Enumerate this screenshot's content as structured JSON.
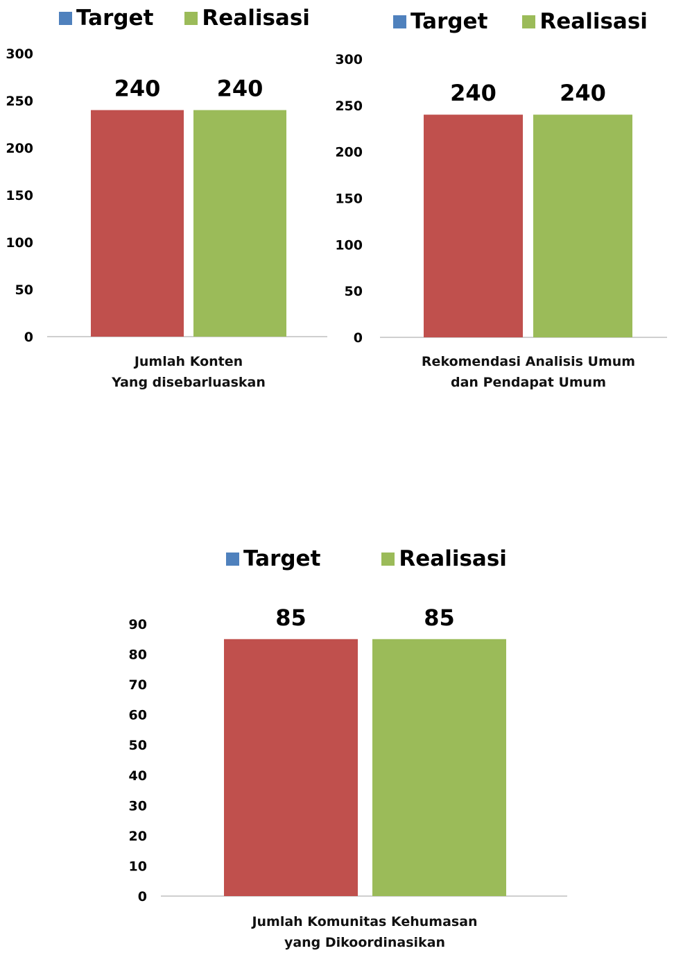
{
  "legend": {
    "target_label": "Target",
    "realisasi_label": "Realisasi",
    "target_color": "#4F81BD",
    "realisasi_color": "#9BBB59"
  },
  "colors": {
    "target_bar": "#C0504D",
    "realisasi_bar": "#9BBB59",
    "axis": "#BFBFBF"
  },
  "chart_data": [
    {
      "type": "bar",
      "categories": [
        "Jumlah Konten Yang disebarluaskan"
      ],
      "category_lines": [
        "Jumlah Konten",
        "Yang disebarluaskan"
      ],
      "series": [
        {
          "name": "Target",
          "values": [
            240
          ]
        },
        {
          "name": "Realisasi",
          "values": [
            240
          ]
        }
      ],
      "data_labels": [
        "240",
        "240"
      ],
      "ylim": [
        0,
        300
      ],
      "yticks": [
        0,
        50,
        100,
        150,
        200,
        250,
        300
      ],
      "legend_position": "top",
      "grid": false
    },
    {
      "type": "bar",
      "categories": [
        "Rekomendasi Analisis Umum dan Pendapat Umum"
      ],
      "category_lines": [
        "Rekomendasi Analisis Umum",
        "dan Pendapat Umum"
      ],
      "series": [
        {
          "name": "Target",
          "values": [
            240
          ]
        },
        {
          "name": "Realisasi",
          "values": [
            240
          ]
        }
      ],
      "data_labels": [
        "240",
        "240"
      ],
      "ylim": [
        0,
        300
      ],
      "yticks": [
        0,
        50,
        100,
        150,
        200,
        250,
        300
      ],
      "legend_position": "top",
      "grid": false
    },
    {
      "type": "bar",
      "categories": [
        "Jumlah Komunitas Kehumasan yang Dikoordinasikan"
      ],
      "category_lines": [
        "Jumlah Komunitas Kehumasan",
        "yang Dikoordinasikan"
      ],
      "series": [
        {
          "name": "Target",
          "values": [
            85
          ]
        },
        {
          "name": "Realisasi",
          "values": [
            85
          ]
        }
      ],
      "data_labels": [
        "85",
        "85"
      ],
      "ylim": [
        0,
        90
      ],
      "yticks": [
        0,
        10,
        20,
        30,
        40,
        50,
        60,
        70,
        80,
        90
      ],
      "legend_position": "top",
      "grid": false
    }
  ]
}
